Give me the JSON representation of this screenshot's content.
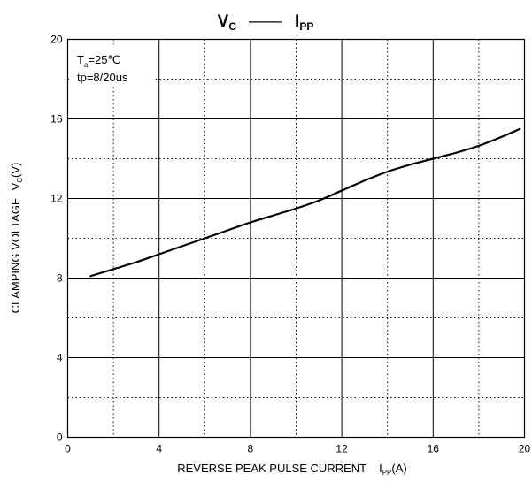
{
  "chart_data": {
    "type": "line",
    "title": {
      "left_symbol": "V",
      "left_subscript": "C",
      "dash": "——",
      "right_symbol": "I",
      "right_subscript": "PP"
    },
    "xlabel": {
      "text": "REVERSE PEAK PULSE CURRENT",
      "symbol": "I",
      "subscript": "PP",
      "unit": "(A)"
    },
    "ylabel": {
      "text": "CLAMPING VOLTAGE",
      "symbol": "V",
      "subscript": "C",
      "unit": "(V)"
    },
    "xlim": [
      0,
      20
    ],
    "ylim": [
      0,
      20
    ],
    "x_ticks": [
      0,
      4,
      8,
      12,
      16,
      20
    ],
    "y_ticks": [
      0,
      4,
      8,
      12,
      16,
      20
    ],
    "grid": {
      "solid_major": true,
      "dotted_minor": true,
      "minor_step": 2
    },
    "annotations": {
      "temperature": {
        "symbol": "T",
        "subscript": "a",
        "value": "=25℃"
      },
      "pulse": "tp=8/20us"
    },
    "series": [
      {
        "color": "#000000",
        "x": [
          1,
          2,
          3,
          4,
          5,
          6,
          7,
          8,
          9,
          10,
          11,
          12,
          13,
          14,
          15,
          16,
          17,
          18,
          19,
          19.8
        ],
        "y": [
          8.1,
          8.45,
          8.8,
          9.2,
          9.6,
          10.0,
          10.4,
          10.8,
          11.15,
          11.5,
          11.9,
          12.4,
          12.9,
          13.35,
          13.7,
          14.0,
          14.3,
          14.65,
          15.1,
          15.5
        ]
      }
    ]
  }
}
